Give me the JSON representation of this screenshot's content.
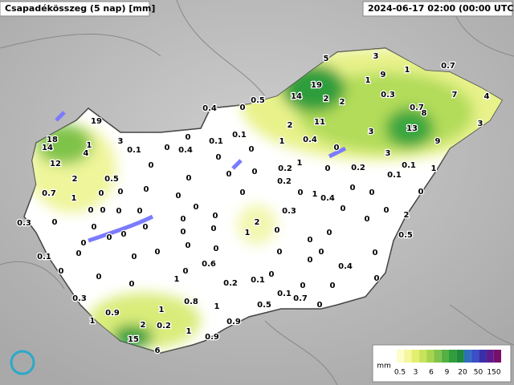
{
  "header": {
    "title": "Csapadékösszeg (5 nap) [mm]",
    "timestamp": "2024-06-17 02:00 (00:00 UTC)"
  },
  "stations": [
    5,
    3,
    0.7,
    9,
    1,
    19,
    1,
    14,
    2,
    2,
    0.3,
    7,
    4,
    0.5,
    0.4,
    0,
    0.7,
    8,
    19,
    11,
    2,
    3,
    13,
    3,
    0.1,
    0,
    0.1,
    1,
    0.4,
    9,
    18,
    1,
    3,
    14,
    4,
    0.1,
    0,
    0.4,
    0,
    0,
    3,
    0,
    1,
    0.1,
    1,
    12,
    0,
    0.2,
    0,
    0.2,
    0,
    2,
    0.5,
    0,
    0,
    0.1,
    0.2,
    0.7,
    0,
    0,
    1,
    0,
    0,
    0,
    0,
    1,
    0.4,
    0,
    0,
    0,
    0,
    0,
    0,
    0,
    0,
    0.3,
    0,
    0,
    2,
    0.3,
    0,
    0,
    0,
    0,
    0,
    2,
    0,
    0,
    0,
    0,
    0,
    1,
    0,
    0,
    0,
    0,
    0.5,
    0,
    0.1,
    0,
    0,
    0,
    0,
    0,
    0,
    0,
    0,
    0.6,
    0.4,
    0,
    0,
    0,
    0,
    0,
    1,
    0.2,
    0.1,
    0,
    0,
    0,
    0.3,
    0.1,
    0.7,
    0.8,
    1,
    1,
    0.9,
    0,
    0.5,
    1,
    2,
    0.2,
    0.9,
    1,
    15,
    0.9,
    6
  ],
  "legend": {
    "unit": "mm",
    "ticks": [
      0.5,
      3,
      6,
      9,
      20,
      50,
      150
    ]
  }
}
